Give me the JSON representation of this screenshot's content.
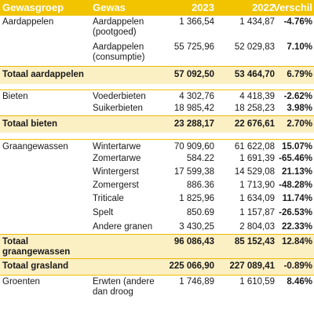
{
  "header": {
    "group": "Gewasgroep",
    "crop": "Gewas",
    "y2023": "2023",
    "y2022": "2022",
    "diff": "Verschil"
  },
  "aardappelen": {
    "group": "Aardappelen",
    "r1": {
      "crop_l1": "Aardappelen",
      "crop_l2": "(pootgoed)",
      "v2023": "1 366,54",
      "v2022": "1 434,87",
      "diff": "-4.76%"
    },
    "r2": {
      "crop_l1": "Aardappelen",
      "crop_l2": "(consumptie)",
      "v2023": "55 725,96",
      "v2022": "52 029,83",
      "diff": "7.10%"
    },
    "total": {
      "label": "Totaal aardappelen",
      "v2023": "57 092,50",
      "v2022": "53 464,70",
      "diff": "6.79%"
    }
  },
  "bieten": {
    "group": "Bieten",
    "r1": {
      "crop": "Voederbieten",
      "v2023": "4 302,76",
      "v2022": "4 418,39",
      "diff": "-2.62%"
    },
    "r2": {
      "crop": "Suikerbieten",
      "v2023": "18 985,42",
      "v2022": "18 258,23",
      "diff": "3.98%"
    },
    "total": {
      "label": "Totaal bieten",
      "v2023": "23 288,17",
      "v2022": "22 676,61",
      "diff": "2.70%"
    }
  },
  "graan": {
    "group": "Graangewassen",
    "rows": [
      {
        "crop": "Wintertarwe",
        "v2023": "70 909,60",
        "v2022": "61 622,08",
        "diff": "15.07%"
      },
      {
        "crop": "Zomertarwe",
        "v2023": "584.22",
        "v2022": "1 691,39",
        "diff": "-65.46%"
      },
      {
        "crop": "Wintergerst",
        "v2023": "17 599,38",
        "v2022": "14 529,08",
        "diff": "21.13%"
      },
      {
        "crop": "Zomergerst",
        "v2023": "886.36",
        "v2022": "1 713,90",
        "diff": "-48.28%"
      },
      {
        "crop": "Triticale",
        "v2023": "1 825,96",
        "v2022": "1 634,09",
        "diff": "11.74%"
      },
      {
        "crop": "Spelt",
        "v2023": "850.69",
        "v2022": "1 157,87",
        "diff": "-26.53%"
      },
      {
        "crop": "Andere granen",
        "v2023": "3 430,25",
        "v2022": "2 804,03",
        "diff": "22.33%"
      }
    ],
    "total": {
      "label_l1": "Totaal",
      "label_l2": "graangewassen",
      "v2023": "96 086,43",
      "v2022": "85 152,43",
      "diff": "12.84%"
    }
  },
  "grasland": {
    "total": {
      "label": "Totaal grasland",
      "v2023": "225 066,90",
      "v2022": "227 089,41",
      "diff": "-0.89%"
    }
  },
  "groenten": {
    "group": "Groenten",
    "r1": {
      "crop_l1": "Erwten (andere",
      "crop_l2": "dan droog",
      "v2023": "1 746,89",
      "v2022": "1 610,59",
      "diff": "8.46%"
    }
  }
}
